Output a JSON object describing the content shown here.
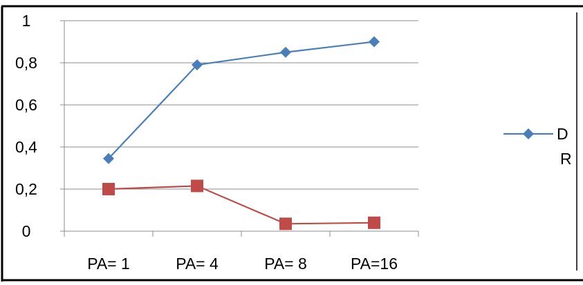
{
  "chart_data": {
    "type": "line",
    "title": "",
    "xlabel": "",
    "ylabel": "",
    "categories": [
      "PA= 1",
      "PA= 4",
      "PA= 8",
      "PA=16"
    ],
    "ylim": [
      0,
      1
    ],
    "yticks": [
      0,
      0.2,
      0.4,
      0.6,
      0.8,
      1
    ],
    "ytick_labels": [
      "0",
      "0,2",
      "0,4",
      "0,6",
      "0,8",
      "1"
    ],
    "grid": true,
    "legend_position": "right",
    "series": [
      {
        "name": "D",
        "color": "#4A7EBB",
        "marker": "diamond",
        "values": [
          0.345,
          0.79,
          0.85,
          0.9
        ]
      },
      {
        "name": "R",
        "color": "#BE4B48",
        "marker": "square",
        "values": [
          0.2,
          0.215,
          0.035,
          0.04
        ]
      }
    ]
  }
}
